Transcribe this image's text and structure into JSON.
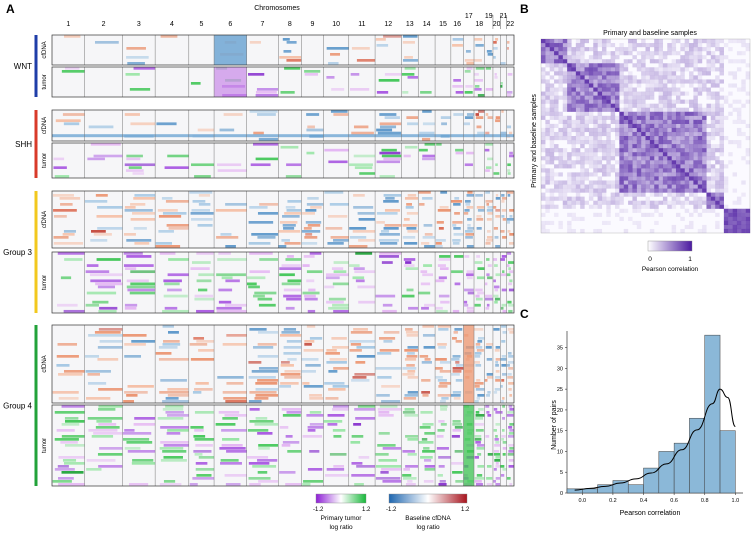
{
  "panel_letters": {
    "a": "A",
    "b": "B",
    "c": "C"
  },
  "heatmap": {
    "title": "Chromosomes",
    "chromosomes": [
      "1",
      "2",
      "3",
      "4",
      "5",
      "6",
      "7",
      "8",
      "9",
      "10",
      "11",
      "12",
      "13",
      "14",
      "15",
      "16",
      "17",
      "18",
      "19",
      "20",
      "21",
      "22"
    ],
    "groups": [
      {
        "name": "WNT",
        "color": "#1f3ea8",
        "tracks": [
          {
            "label": "cfDNA"
          },
          {
            "label": "tumor"
          }
        ]
      },
      {
        "name": "SHH",
        "color": "#d83a2a",
        "tracks": [
          {
            "label": "cfDNA"
          },
          {
            "label": "tumor"
          }
        ]
      },
      {
        "name": "Group 3",
        "color": "#f2c81e",
        "tracks": [
          {
            "label": "cfDNA"
          },
          {
            "label": "tumor"
          }
        ]
      },
      {
        "name": "Group 4",
        "color": "#22a23a",
        "tracks": [
          {
            "label": "cfDNA"
          },
          {
            "label": "tumor"
          }
        ]
      }
    ],
    "legend_tumor": {
      "min": "-1.2",
      "max": "1.2",
      "title_line1": "Primary tumor",
      "title_line2": "log ratio",
      "colors": [
        "#8e1fd6",
        "#ffffff",
        "#18b83a"
      ]
    },
    "legend_cfdna": {
      "min": "-1.2",
      "max": "1.2",
      "title_line1": "Baseline cfDNA",
      "title_line2": "log ratio",
      "colors": [
        "#1e66b0",
        "#ffffff",
        "#a8141e"
      ]
    }
  },
  "correlation_matrix": {
    "title": "Primary and baseline samples",
    "ylabel": "Primary and baseline samples",
    "colorbar_min": "0",
    "colorbar_max": "1",
    "colorbar_label": "Pearson correlation",
    "colors": [
      "#ffffff",
      "#4b1aa0"
    ]
  },
  "chart_data": {
    "type": "bar",
    "title": "",
    "xlabel": "Pearson correlation",
    "ylabel": "Number of pairs",
    "bin_edges": [
      -0.1,
      0.0,
      0.1,
      0.2,
      0.3,
      0.4,
      0.5,
      0.6,
      0.7,
      0.8,
      0.9,
      1.0
    ],
    "values": [
      1,
      1,
      2,
      3,
      2,
      6,
      10,
      12,
      18,
      38,
      15
    ],
    "xlim": [
      -0.1,
      1.05
    ],
    "ylim": [
      0,
      39
    ],
    "xticks": [
      0.0,
      0.2,
      0.4,
      0.6,
      0.8,
      1.0
    ],
    "xtick_labels": [
      "0.0",
      "0.2",
      "0.4",
      "0.6",
      "0.8",
      "1.0"
    ],
    "yticks": [
      0,
      5,
      10,
      15,
      20,
      25,
      30,
      35
    ],
    "ytick_labels": [
      "0",
      "5",
      "10",
      "15",
      "20",
      "25",
      "30",
      "35"
    ],
    "kde": [
      [
        -0.05,
        0.7
      ],
      [
        0.05,
        1.1
      ],
      [
        0.15,
        1.6
      ],
      [
        0.25,
        2.4
      ],
      [
        0.35,
        3.4
      ],
      [
        0.45,
        4.8
      ],
      [
        0.55,
        7.0
      ],
      [
        0.65,
        10.4
      ],
      [
        0.75,
        15.2
      ],
      [
        0.85,
        21.5
      ],
      [
        0.9,
        25.0
      ],
      [
        0.95,
        23.0
      ],
      [
        1.0,
        16.0
      ]
    ],
    "bar_color": "#8bb8d8",
    "line_color": "#000000"
  }
}
